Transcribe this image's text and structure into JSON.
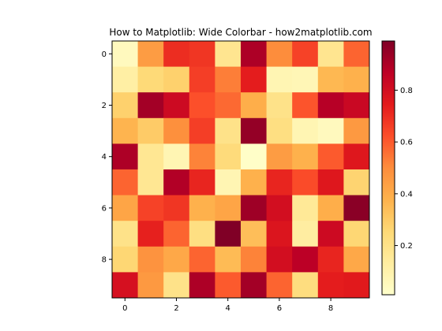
{
  "chart_data": {
    "type": "heatmap",
    "title": "How to Matplotlib: Wide Colorbar - how2matplotlib.com",
    "xlabel": "",
    "ylabel": "",
    "colormap": "YlOrRd",
    "x_ticks": [
      "0",
      "2",
      "4",
      "6",
      "8"
    ],
    "y_ticks": [
      "0",
      "2",
      "4",
      "6",
      "8"
    ],
    "colorbar_ticks": [
      "0.2",
      "0.4",
      "0.6",
      "0.8"
    ],
    "colorbar_range": [
      0.01,
      0.99
    ],
    "grid": false,
    "values": [
      [
        0.05,
        0.45,
        0.7,
        0.68,
        0.18,
        0.9,
        0.5,
        0.65,
        0.18,
        0.58
      ],
      [
        0.12,
        0.25,
        0.28,
        0.66,
        0.53,
        0.74,
        0.08,
        0.07,
        0.36,
        0.38
      ],
      [
        0.28,
        0.92,
        0.82,
        0.62,
        0.57,
        0.39,
        0.2,
        0.61,
        0.88,
        0.83
      ],
      [
        0.37,
        0.3,
        0.49,
        0.66,
        0.2,
        0.95,
        0.22,
        0.08,
        0.05,
        0.46
      ],
      [
        0.9,
        0.17,
        0.08,
        0.52,
        0.24,
        0.02,
        0.45,
        0.38,
        0.6,
        0.76
      ],
      [
        0.58,
        0.17,
        0.89,
        0.72,
        0.08,
        0.38,
        0.72,
        0.63,
        0.76,
        0.27
      ],
      [
        0.42,
        0.65,
        0.68,
        0.38,
        0.42,
        0.93,
        0.8,
        0.16,
        0.39,
        0.97
      ],
      [
        0.2,
        0.73,
        0.58,
        0.22,
        0.99,
        0.34,
        0.77,
        0.13,
        0.82,
        0.26
      ],
      [
        0.26,
        0.48,
        0.41,
        0.58,
        0.35,
        0.52,
        0.8,
        0.87,
        0.72,
        0.41
      ],
      [
        0.79,
        0.46,
        0.2,
        0.9,
        0.6,
        0.92,
        0.58,
        0.23,
        0.74,
        0.75
      ]
    ]
  }
}
